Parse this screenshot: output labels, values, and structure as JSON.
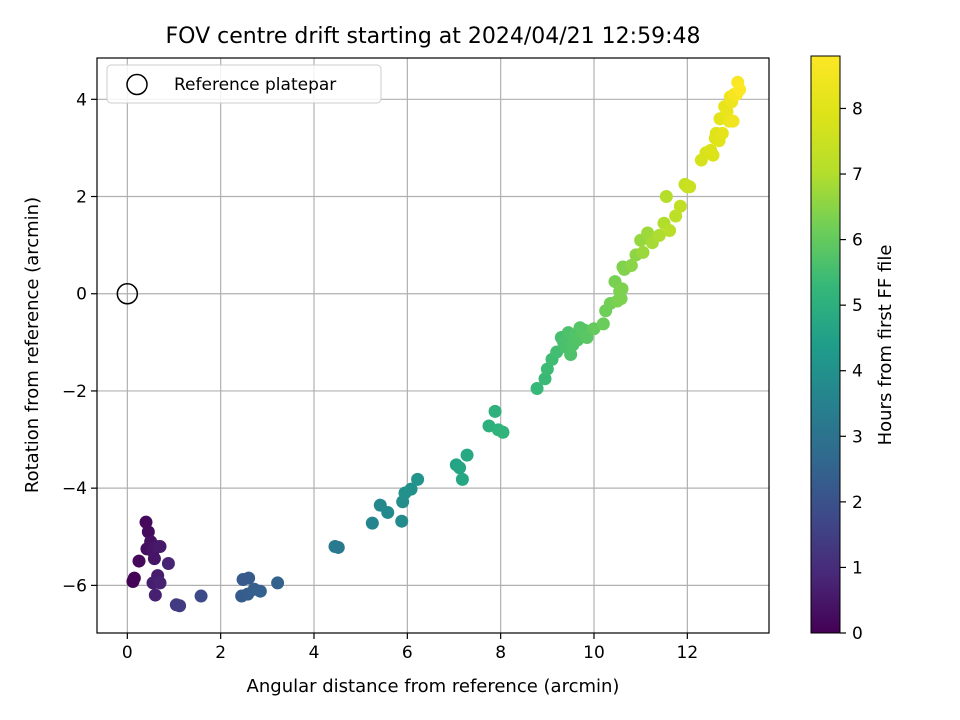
{
  "chart_data": {
    "type": "scatter",
    "title": "FOV centre drift starting at 2024/04/21 12:59:48",
    "xlabel": "Angular distance from reference (arcmin)",
    "ylabel": "Rotation from reference (arcmin)",
    "xlim": [
      -0.65,
      13.75
    ],
    "ylim": [
      -6.98,
      4.85
    ],
    "xticks": [
      0,
      2,
      4,
      6,
      8,
      10,
      12
    ],
    "yticks": [
      -6,
      -4,
      -2,
      0,
      2,
      4
    ],
    "grid": true,
    "legend": {
      "placement": "top-left",
      "entries": [
        "Reference platepar"
      ]
    },
    "reference_point": {
      "label": "Reference platepar",
      "x": 0,
      "y": 0
    },
    "colorbar": {
      "label": "Hours from first FF file",
      "range": [
        0,
        8.8
      ],
      "ticks": [
        0,
        1,
        2,
        3,
        4,
        5,
        6,
        7,
        8
      ],
      "colormap": "viridis"
    },
    "series": [
      {
        "x": [
          0.12,
          0.15,
          0.25,
          0.4,
          0.45,
          0.42,
          0.5,
          0.55,
          0.58,
          0.62,
          0.7,
          0.65,
          0.55,
          0.6,
          0.7,
          0.88,
          1.05,
          1.12,
          1.58,
          2.48,
          2.6,
          2.45,
          2.58,
          2.72,
          2.85,
          3.22,
          4.45,
          4.52,
          5.25,
          5.42,
          5.58,
          5.88,
          5.9,
          5.95,
          6.08,
          6.22,
          7.05,
          7.12,
          7.18,
          7.28,
          7.75,
          7.88,
          7.95,
          8.05,
          8.78,
          8.95,
          9.0,
          9.1,
          9.2,
          9.3,
          9.35,
          9.4,
          9.45,
          9.5,
          9.55,
          9.6,
          9.65,
          9.7,
          9.75,
          9.8,
          9.85,
          10.0,
          10.2,
          10.25,
          10.35,
          10.45,
          10.5,
          10.55,
          10.6,
          10.58,
          10.62,
          10.65,
          10.8,
          10.9,
          11.0,
          11.05,
          11.15,
          11.25,
          11.4,
          11.5,
          11.55,
          11.62,
          11.75,
          11.85,
          11.95,
          12.0,
          12.05,
          12.3,
          12.4,
          12.5,
          12.55,
          12.6,
          12.62,
          12.68,
          12.7,
          12.75,
          12.8,
          12.85,
          12.9,
          12.92,
          12.95,
          12.98,
          13.0,
          13.05,
          13.08,
          13.12
        ],
        "y": [
          -5.92,
          -5.85,
          -5.5,
          -4.7,
          -4.9,
          -5.25,
          -5.1,
          -5.3,
          -5.45,
          -5.2,
          -5.2,
          -5.8,
          -5.95,
          -6.2,
          -5.95,
          -5.55,
          -6.4,
          -6.42,
          -6.22,
          -5.88,
          -5.85,
          -6.22,
          -6.18,
          -6.08,
          -6.12,
          -5.95,
          -5.2,
          -5.22,
          -4.72,
          -4.35,
          -4.5,
          -4.68,
          -4.28,
          -4.1,
          -4.02,
          -3.82,
          -3.52,
          -3.58,
          -3.82,
          -3.32,
          -2.72,
          -2.42,
          -2.8,
          -2.85,
          -1.95,
          -1.75,
          -1.55,
          -1.35,
          -1.2,
          -0.9,
          -1.0,
          -1.1,
          -0.8,
          -1.25,
          -1.05,
          -0.85,
          -0.95,
          -0.7,
          -0.8,
          -0.75,
          -0.9,
          -0.72,
          -0.62,
          -0.35,
          -0.2,
          0.25,
          -0.15,
          0.05,
          0.1,
          -0.1,
          0.55,
          0.5,
          0.58,
          0.8,
          1.1,
          0.85,
          1.25,
          1.05,
          1.2,
          1.45,
          2.0,
          1.3,
          1.6,
          1.8,
          2.25,
          2.2,
          2.2,
          2.75,
          2.9,
          2.95,
          2.85,
          3.2,
          3.3,
          3.15,
          3.6,
          3.3,
          3.85,
          3.75,
          3.55,
          4.05,
          3.95,
          3.55,
          4.1,
          4.1,
          4.35,
          4.2
        ],
        "c": [
          0.05,
          0.1,
          0.15,
          0.2,
          0.25,
          0.3,
          0.35,
          0.4,
          0.45,
          0.5,
          0.55,
          0.6,
          0.65,
          0.7,
          0.75,
          0.8,
          1.35,
          1.4,
          1.8,
          2.2,
          2.25,
          2.3,
          2.35,
          2.4,
          2.45,
          2.5,
          3.2,
          3.25,
          3.6,
          3.7,
          3.75,
          3.8,
          3.9,
          3.95,
          4.0,
          4.1,
          4.6,
          4.65,
          4.7,
          4.75,
          5.0,
          5.05,
          5.1,
          5.15,
          5.3,
          5.35,
          5.4,
          5.45,
          5.5,
          5.55,
          5.6,
          5.62,
          5.65,
          5.68,
          5.7,
          5.72,
          5.75,
          5.78,
          5.8,
          5.82,
          5.85,
          6.0,
          6.1,
          6.15,
          6.2,
          6.28,
          6.3,
          6.32,
          6.35,
          6.33,
          6.38,
          6.4,
          6.5,
          6.55,
          6.65,
          6.7,
          6.75,
          6.85,
          6.95,
          7.0,
          7.05,
          7.1,
          7.2,
          7.3,
          7.4,
          7.45,
          7.5,
          7.75,
          7.8,
          7.85,
          7.9,
          7.95,
          8.0,
          8.05,
          8.1,
          8.15,
          8.2,
          8.25,
          8.3,
          8.35,
          8.4,
          8.45,
          8.5,
          8.6,
          8.7,
          8.75
        ]
      }
    ]
  }
}
